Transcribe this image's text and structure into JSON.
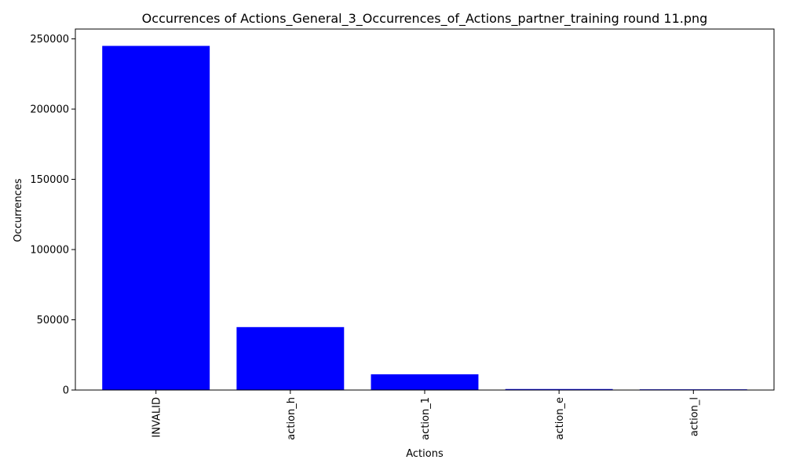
{
  "chart_data": {
    "type": "bar",
    "title": "Occurrences of Actions_General_3_Occurrences_of_Actions_partner_training round 11.png",
    "xlabel": "Actions",
    "ylabel": "Occurrences",
    "categories": [
      "INVALID",
      "action_h",
      "action_1",
      "action_e",
      "action_l"
    ],
    "values": [
      245000,
      44800,
      11200,
      700,
      500
    ],
    "ylim": [
      0,
      257000
    ],
    "yticks": [
      0,
      50000,
      100000,
      150000,
      200000,
      250000
    ],
    "ytick_labels": [
      "0",
      "50000",
      "100000",
      "150000",
      "200000",
      "250000"
    ],
    "bar_color": "#0000ff",
    "grid": false,
    "legend": "none",
    "xtick_rotation": "vertical"
  }
}
